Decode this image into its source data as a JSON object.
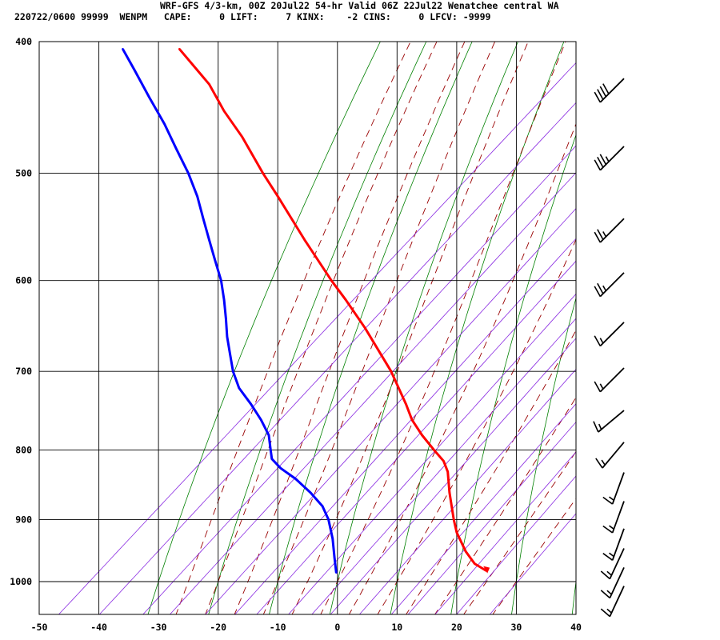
{
  "header": {
    "title": "WRF-GFS 4/3-km, 00Z 20Jul22 54-hr Valid 06Z 22Jul22 Wenatchee central WA",
    "stats": "220722/0600 99999  WENPM   CAPE:     0 LIFT:     7 KINX:    -2 CINS:     0 LFCV: -9999"
  },
  "colors": {
    "temperature": "#ff0000",
    "dewpoint": "#0000ff",
    "dry_adiabat": "#008000",
    "moist_adiabat": "#990000",
    "mixing_ratio": "#8a2be2",
    "grid": "#000000",
    "barb": "#000000"
  },
  "chart_data": {
    "type": "line",
    "subtype": "skew-T log-P sounding",
    "x_axis": {
      "range": [
        -50,
        40
      ],
      "ticks": [
        -50,
        -40,
        -30,
        -20,
        -10,
        0,
        10,
        20,
        30,
        40
      ]
    },
    "y_axis": {
      "scale": "log",
      "range": [
        1040,
        400
      ],
      "ticks": [
        400,
        500,
        600,
        700,
        800,
        900,
        1000
      ]
    },
    "grid": true,
    "series": [
      {
        "id": "temperature",
        "color": "#ff0000",
        "points": [
          [
            982,
            25
          ],
          [
            970,
            23
          ],
          [
            950,
            21.5
          ],
          [
            920,
            20
          ],
          [
            900,
            19.5
          ],
          [
            860,
            18.8
          ],
          [
            830,
            18.5
          ],
          [
            815,
            17.8
          ],
          [
            800,
            16.2
          ],
          [
            780,
            14.2
          ],
          [
            760,
            12.5
          ],
          [
            740,
            11.5
          ],
          [
            700,
            9
          ],
          [
            650,
            4.6
          ],
          [
            620,
            1.4
          ],
          [
            600,
            -1
          ],
          [
            560,
            -5.5
          ],
          [
            520,
            -10
          ],
          [
            500,
            -12.5
          ],
          [
            470,
            -16
          ],
          [
            450,
            -19
          ],
          [
            430,
            -21.5
          ],
          [
            405,
            -26.5
          ]
        ]
      },
      {
        "id": "dewpoint",
        "color": "#0000ff",
        "points": [
          [
            985,
            -0.2
          ],
          [
            960,
            -0.5
          ],
          [
            930,
            -0.8
          ],
          [
            900,
            -1.5
          ],
          [
            880,
            -2.5
          ],
          [
            860,
            -4.5
          ],
          [
            840,
            -7
          ],
          [
            825,
            -9.5
          ],
          [
            812,
            -11
          ],
          [
            800,
            -11.2
          ],
          [
            780,
            -11.5
          ],
          [
            760,
            -12.8
          ],
          [
            740,
            -14.5
          ],
          [
            720,
            -16.5
          ],
          [
            700,
            -17.5
          ],
          [
            680,
            -18
          ],
          [
            660,
            -18.5
          ],
          [
            640,
            -18.7
          ],
          [
            620,
            -19
          ],
          [
            600,
            -19.5
          ],
          [
            580,
            -20.5
          ],
          [
            560,
            -21.5
          ],
          [
            540,
            -22.5
          ],
          [
            520,
            -23.5
          ],
          [
            500,
            -25
          ],
          [
            480,
            -27
          ],
          [
            460,
            -29
          ],
          [
            440,
            -31.5
          ],
          [
            420,
            -34
          ],
          [
            405,
            -36
          ]
        ]
      }
    ],
    "background_lines": {
      "dry_adiabats_theta_c": [
        -30,
        -20,
        -10,
        0,
        10,
        20,
        30,
        40,
        50,
        60,
        70,
        80,
        90
      ],
      "moist_adiabats_tw_c": [
        -25,
        -20,
        -15,
        -10,
        -5,
        0,
        5,
        10,
        15,
        20,
        25,
        30
      ],
      "mixing_ratios_gkg": [
        0.1,
        0.2,
        0.4,
        0.6,
        1,
        1.5,
        2,
        3,
        4,
        5,
        7,
        10,
        12,
        16,
        20,
        28
      ]
    },
    "wind_barbs": [
      {
        "p": 410,
        "dir": 225,
        "spd": 40
      },
      {
        "p": 460,
        "dir": 225,
        "spd": 35
      },
      {
        "p": 520,
        "dir": 225,
        "spd": 25
      },
      {
        "p": 570,
        "dir": 225,
        "spd": 25
      },
      {
        "p": 620,
        "dir": 225,
        "spd": 15
      },
      {
        "p": 670,
        "dir": 225,
        "spd": 15
      },
      {
        "p": 720,
        "dir": 230,
        "spd": 15
      },
      {
        "p": 760,
        "dir": 220,
        "spd": 15
      },
      {
        "p": 800,
        "dir": 200,
        "spd": 15
      },
      {
        "p": 840,
        "dir": 200,
        "spd": 15
      },
      {
        "p": 880,
        "dir": 200,
        "spd": 15
      },
      {
        "p": 910,
        "dir": 205,
        "spd": 15
      },
      {
        "p": 940,
        "dir": 205,
        "spd": 15
      },
      {
        "p": 970,
        "dir": 205,
        "spd": 15
      }
    ]
  }
}
